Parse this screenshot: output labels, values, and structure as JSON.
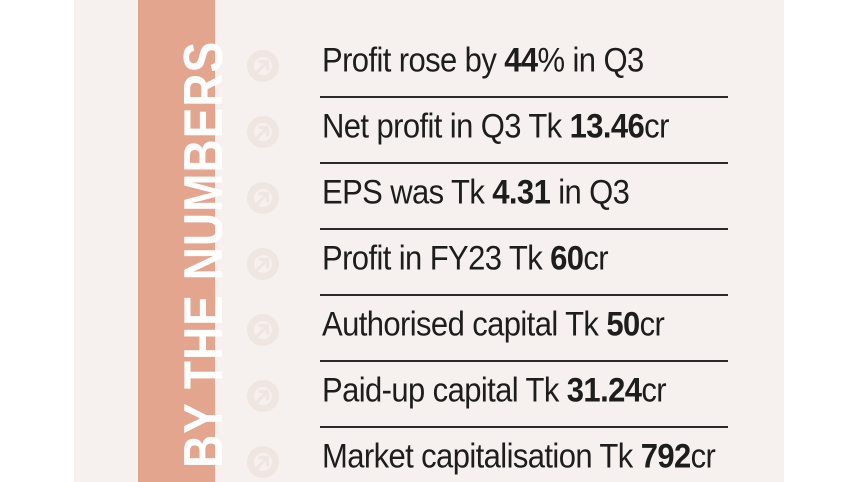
{
  "side_label": "BY THE NUMBERS",
  "colors": {
    "card_background": "#f6f1ee",
    "band": "#e4a58f",
    "icon": "#efe5e1",
    "text": "#1d1d1d",
    "rule": "#2a2a2a"
  },
  "icon_name": "arrow-circle-icon",
  "items": [
    {
      "pre": "Profit rose by ",
      "num": "44",
      "post": "% in Q3"
    },
    {
      "pre": "Net profit in Q3 Tk ",
      "num": "13.46",
      "post": "cr"
    },
    {
      "pre": "EPS was Tk ",
      "num": "4.31",
      "post": " in Q3"
    },
    {
      "pre": "Profit in FY23 Tk ",
      "num": "60",
      "post": "cr"
    },
    {
      "pre": "Authorised capital Tk ",
      "num": "50",
      "post": "cr"
    },
    {
      "pre": "Paid-up capital Tk ",
      "num": "31.24",
      "post": "cr"
    },
    {
      "pre": "Market capitalisation Tk ",
      "num": "792",
      "post": "cr"
    }
  ]
}
